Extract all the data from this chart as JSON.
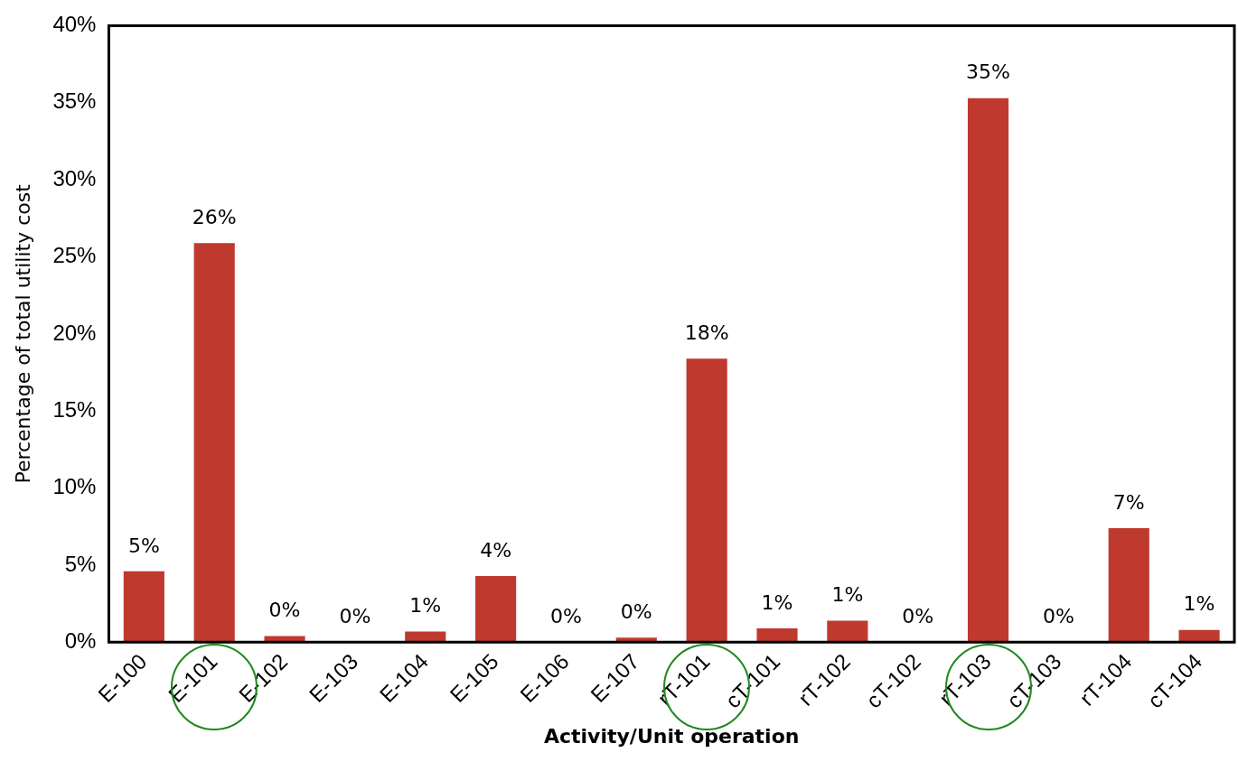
{
  "chart_data": {
    "type": "bar",
    "xlabel": "Activity/Unit operation",
    "ylabel": "Percentage of total utility cost",
    "categories": [
      "E-100",
      "E-101",
      "E-102",
      "E-103",
      "E-104",
      "E-105",
      "E-106",
      "E-107",
      "rT-101",
      "cT-101",
      "rT-102",
      "cT-102",
      "rT-103",
      "cT-103",
      "rT-104",
      "cT-104"
    ],
    "values": [
      4.6,
      25.9,
      0.4,
      0,
      0.7,
      4.3,
      0,
      0.3,
      18.4,
      0.9,
      1.4,
      0,
      35.3,
      0,
      7.4,
      0.8
    ],
    "value_labels": [
      "5%",
      "26%",
      "0%",
      "0%",
      "1%",
      "4%",
      "0%",
      "0%",
      "18%",
      "1%",
      "1%",
      "0%",
      "35%",
      "0%",
      "7%",
      "1%"
    ],
    "color": "#c0392f",
    "ylim": [
      0,
      40
    ],
    "yticks": [
      {
        "value": 0,
        "label": "0%"
      },
      {
        "value": 5,
        "label": "5%"
      },
      {
        "value": 10,
        "label": "10%"
      },
      {
        "value": 15,
        "label": "15%"
      },
      {
        "value": 20,
        "label": "20%"
      },
      {
        "value": 25,
        "label": "25%"
      },
      {
        "value": 30,
        "label": "30%"
      },
      {
        "value": 35,
        "label": "35%"
      },
      {
        "value": 40,
        "label": "40%"
      }
    ],
    "grid": false,
    "legend": false
  }
}
